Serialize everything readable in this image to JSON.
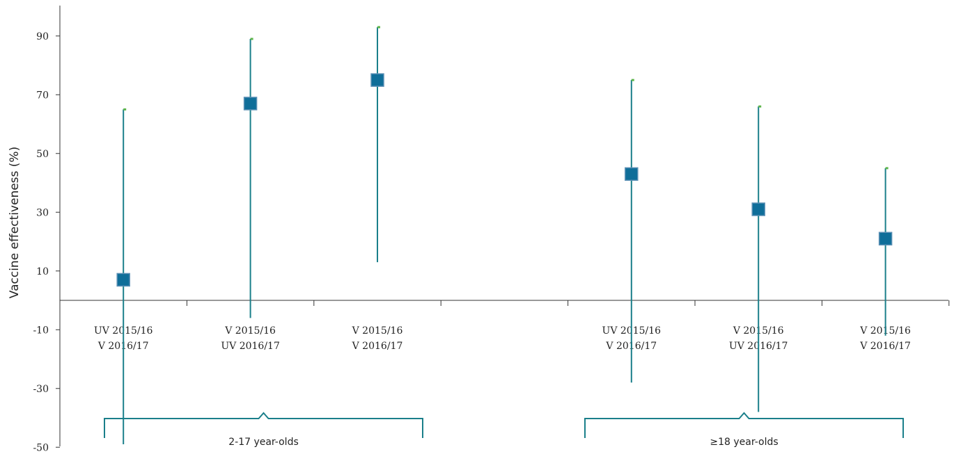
{
  "chart_data": {
    "type": "scatter",
    "ylabel": "Vaccine effectiveness (%)",
    "xlabel": "",
    "ylim": [
      -50,
      100
    ],
    "yticks": [
      90,
      70,
      50,
      30,
      10,
      -10,
      -30,
      -50
    ],
    "categories": [
      [
        "UV 2015/16",
        "V 2016/17"
      ],
      [
        "V 2015/16",
        "UV 2016/17"
      ],
      [
        "V 2015/16",
        "V 2016/17"
      ],
      [
        "UV 2015/16",
        "V 2016/17"
      ],
      [
        "V 2015/16",
        "UV 2016/17"
      ],
      [
        "V 2015/16",
        "V 2016/17"
      ]
    ],
    "points": [
      {
        "slot": 1,
        "estimate": 7,
        "lower": -49,
        "upper": 65
      },
      {
        "slot": 2,
        "estimate": 67,
        "lower": -6,
        "upper": 89
      },
      {
        "slot": 3,
        "estimate": 75,
        "lower": 13,
        "upper": 93
      },
      {
        "slot": 5,
        "estimate": 43,
        "lower": -28,
        "upper": 75
      },
      {
        "slot": 6,
        "estimate": 31,
        "lower": -38,
        "upper": 66
      },
      {
        "slot": 7,
        "estimate": 21,
        "lower": -12,
        "upper": 45
      }
    ],
    "groups": [
      {
        "label": "2-17 year-olds"
      },
      {
        "label": "≥18 year-olds"
      }
    ],
    "colors": {
      "marker": "#0f6e99",
      "marker_border": "#5a8fb4",
      "ci_line": "#1a7f8a",
      "ci_cap": "#5db54a",
      "bracket": "#1a7f8a",
      "axis": "#333333"
    }
  }
}
